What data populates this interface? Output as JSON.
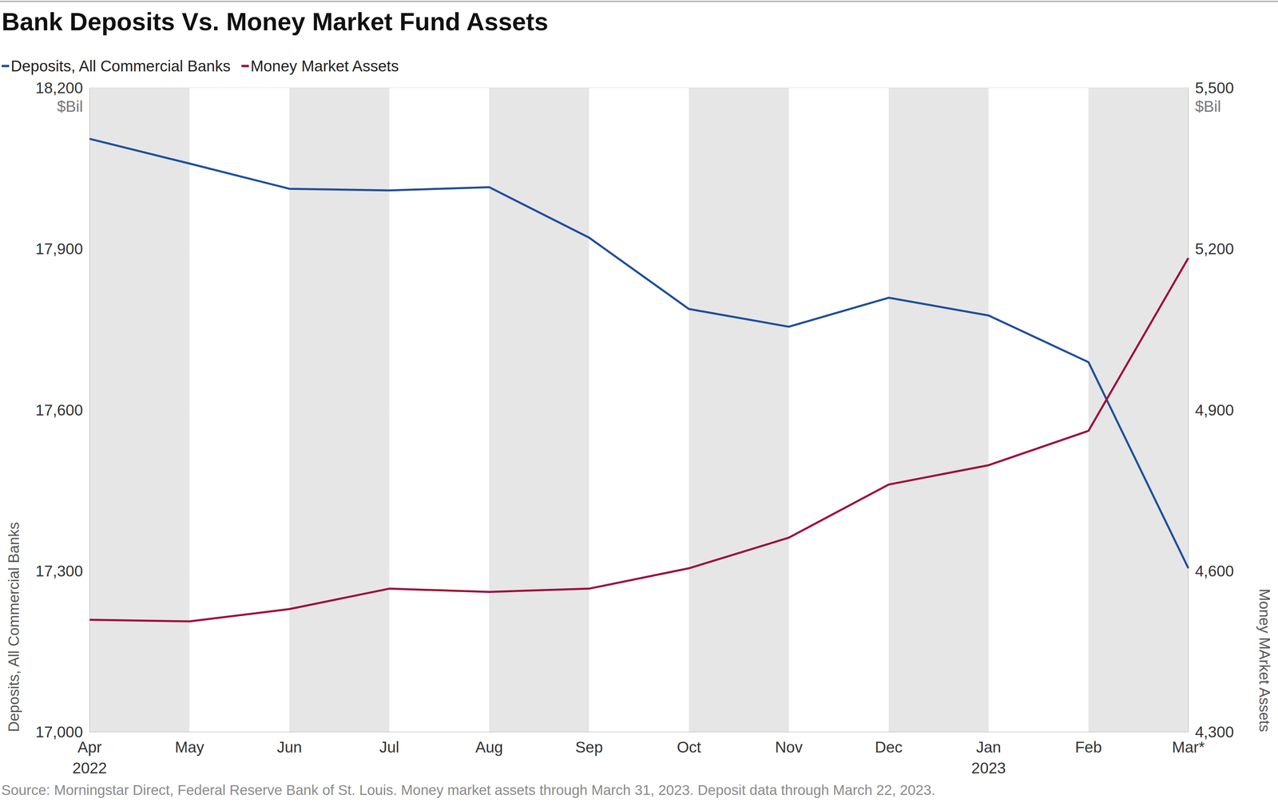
{
  "chart_data": {
    "type": "line",
    "title": "Bank Deposits Vs. Money Market Fund Assets",
    "categories": [
      "Apr\n2022",
      "May",
      "Jun",
      "Jul",
      "Aug",
      "Sep",
      "Oct",
      "Nov",
      "Dec",
      "Jan\n2023",
      "Feb",
      "Mar*"
    ],
    "series": [
      {
        "name": "Deposits, All Commercial Banks",
        "color": "#1f4e9c",
        "values": [
          18105,
          18059,
          18012,
          18009,
          18015,
          17921,
          17788,
          17755,
          17809,
          17776,
          17689,
          17305
        ]
      },
      {
        "name": "Money Market Assets",
        "color": "#9e0f3b",
        "axis": "y2",
        "values": [
          4509,
          4506,
          4529,
          4567,
          4561,
          4567,
          4605,
          4662,
          4761,
          4797,
          4861,
          5183
        ]
      }
    ],
    "ylabel": "Deposits, All Commercial Banks",
    "y2label": "Money MArket Assets",
    "y_unit": "$Bil",
    "y2_unit": "$Bil",
    "ylim": [
      17000,
      18200
    ],
    "yticks": [
      {
        "value": 17000,
        "label": "17,000"
      },
      {
        "value": 17300,
        "label": "17,300"
      },
      {
        "value": 17600,
        "label": "17,600"
      },
      {
        "value": 17900,
        "label": "17,900"
      },
      {
        "value": 18200,
        "label": "18,200"
      }
    ],
    "y2lim": [
      4300,
      5500
    ],
    "y2ticks": [
      {
        "value": 4300,
        "label": "4,300"
      },
      {
        "value": 4600,
        "label": "4,600"
      },
      {
        "value": 4900,
        "label": "4,900"
      },
      {
        "value": 5200,
        "label": "5,200"
      },
      {
        "value": 5500,
        "label": "5,500"
      }
    ],
    "grid": true,
    "legend": "top-left",
    "note": "Source: Morningstar Direct, Federal Reserve Bank of St. Louis. Money market assets through March 31, 2023. Deposit data through March 22, 2023."
  }
}
